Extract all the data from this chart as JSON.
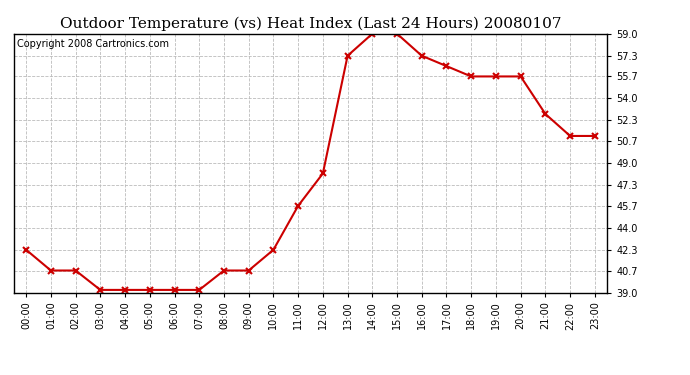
{
  "title": "Outdoor Temperature (vs) Heat Index (Last 24 Hours) 20080107",
  "copyright": "Copyright 2008 Cartronics.com",
  "x_labels": [
    "00:00",
    "01:00",
    "02:00",
    "03:00",
    "04:00",
    "05:00",
    "06:00",
    "07:00",
    "08:00",
    "09:00",
    "10:00",
    "11:00",
    "12:00",
    "13:00",
    "14:00",
    "15:00",
    "16:00",
    "17:00",
    "18:00",
    "19:00",
    "20:00",
    "21:00",
    "22:00",
    "23:00"
  ],
  "y_values": [
    42.3,
    40.7,
    40.7,
    39.2,
    39.2,
    39.2,
    39.2,
    39.2,
    40.7,
    40.7,
    42.3,
    45.7,
    48.2,
    57.3,
    59.0,
    59.0,
    57.3,
    56.5,
    55.7,
    55.7,
    55.7,
    52.8,
    51.1,
    51.1
  ],
  "line_color": "#cc0000",
  "marker": "x",
  "marker_color": "#cc0000",
  "ylim": [
    39.0,
    59.0
  ],
  "yticks": [
    39.0,
    40.7,
    42.3,
    44.0,
    45.7,
    47.3,
    49.0,
    50.7,
    52.3,
    54.0,
    55.7,
    57.3,
    59.0
  ],
  "background_color": "#ffffff",
  "plot_bg_color": "#ffffff",
  "grid_color": "#bbbbbb",
  "title_fontsize": 11,
  "copyright_fontsize": 7,
  "tick_fontsize": 7,
  "border_color": "#000000"
}
